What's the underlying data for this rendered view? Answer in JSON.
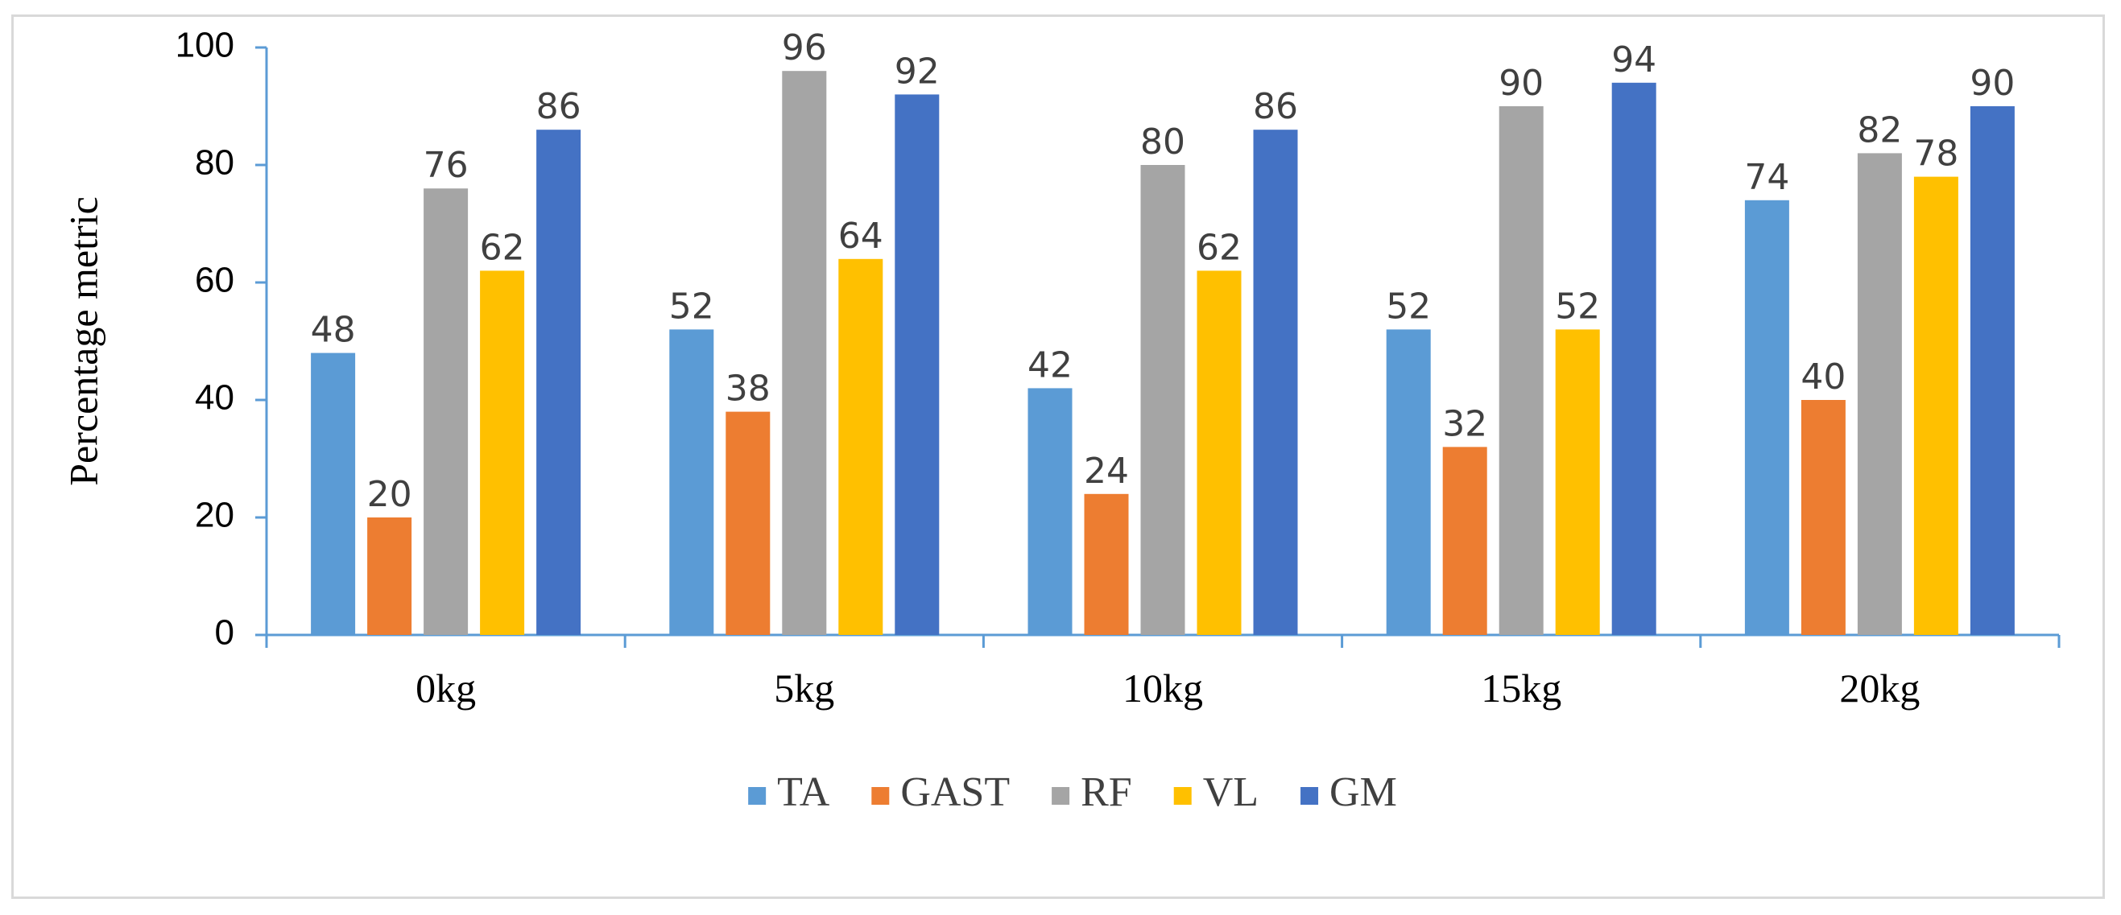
{
  "chart_data": {
    "type": "bar",
    "title": "",
    "xlabel": "",
    "ylabel": "Percentage metric",
    "ylim": [
      0,
      100
    ],
    "yticks": [
      0,
      20,
      40,
      60,
      80,
      100
    ],
    "categories": [
      "0kg",
      "5kg",
      "10kg",
      "15kg",
      "20kg"
    ],
    "series": [
      {
        "name": "TA",
        "color": "#5b9bd5",
        "values": [
          48,
          52,
          42,
          52,
          74
        ]
      },
      {
        "name": "GAST",
        "color": "#ed7d31",
        "values": [
          20,
          38,
          24,
          32,
          40
        ]
      },
      {
        "name": "RF",
        "color": "#a5a5a5",
        "values": [
          76,
          96,
          80,
          90,
          82
        ]
      },
      {
        "name": "VL",
        "color": "#ffc000",
        "values": [
          62,
          64,
          62,
          52,
          78
        ]
      },
      {
        "name": "GM",
        "color": "#4472c4",
        "values": [
          86,
          92,
          86,
          94,
          90
        ]
      }
    ],
    "grid": false,
    "data_labels": true,
    "legend": "bottom",
    "axis_color": "#5b9bd5"
  }
}
